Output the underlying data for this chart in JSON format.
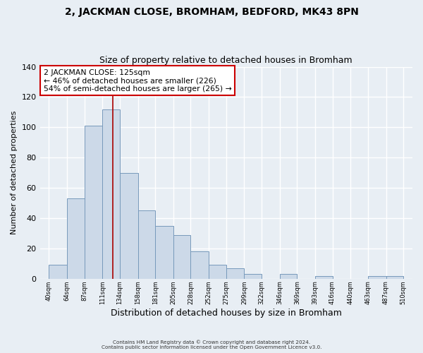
{
  "title": "2, JACKMAN CLOSE, BROMHAM, BEDFORD, MK43 8PN",
  "subtitle": "Size of property relative to detached houses in Bromham",
  "xlabel": "Distribution of detached houses by size in Bromham",
  "ylabel": "Number of detached properties",
  "bar_left_edges": [
    40,
    64,
    87,
    111,
    134,
    158,
    181,
    205,
    228,
    252,
    275,
    299,
    322,
    346,
    369,
    393,
    416,
    440,
    463,
    487
  ],
  "bar_heights": [
    9,
    53,
    101,
    112,
    70,
    45,
    35,
    29,
    18,
    9,
    7,
    3,
    0,
    3,
    0,
    2,
    0,
    0,
    2,
    2
  ],
  "tick_labels": [
    "40sqm",
    "64sqm",
    "87sqm",
    "111sqm",
    "134sqm",
    "158sqm",
    "181sqm",
    "205sqm",
    "228sqm",
    "252sqm",
    "275sqm",
    "299sqm",
    "322sqm",
    "346sqm",
    "369sqm",
    "393sqm",
    "416sqm",
    "440sqm",
    "463sqm",
    "487sqm",
    "510sqm"
  ],
  "tick_positions": [
    40,
    64,
    87,
    111,
    134,
    158,
    181,
    205,
    228,
    252,
    275,
    299,
    322,
    346,
    369,
    393,
    416,
    440,
    463,
    487,
    510
  ],
  "bar_color": "#ccd9e8",
  "bar_edge_color": "#7799bb",
  "vline_x": 125,
  "vline_color": "#aa0000",
  "ylim": [
    0,
    140
  ],
  "xlim_left": 28,
  "xlim_right": 522,
  "annotation_title": "2 JACKMAN CLOSE: 125sqm",
  "annotation_line1": "← 46% of detached houses are smaller (226)",
  "annotation_line2": "54% of semi-detached houses are larger (265) →",
  "annotation_box_color": "#ffffff",
  "annotation_box_edge": "#cc0000",
  "footer_line1": "Contains HM Land Registry data © Crown copyright and database right 2024.",
  "footer_line2": "Contains public sector information licensed under the Open Government Licence v3.0.",
  "background_color": "#e8eef4",
  "grid_color": "#ffffff",
  "title_fontsize": 10,
  "subtitle_fontsize": 9,
  "ylabel_fontsize": 8,
  "xlabel_fontsize": 9
}
